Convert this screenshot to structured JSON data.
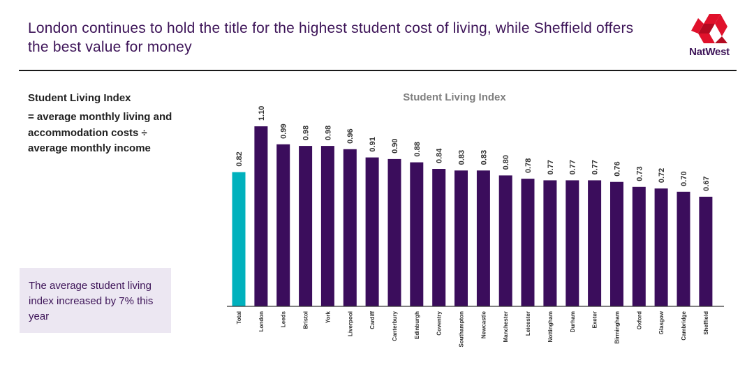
{
  "header": {
    "headline": "London continues to hold the title for the highest student cost of living, while Sheffield offers the best value for money",
    "logo_text": "NatWest",
    "logo_icon": "natwest-cubes-icon"
  },
  "definition": {
    "title": "Student Living Index",
    "text": "= average monthly living and accommodation costs ÷ average monthly income"
  },
  "callout": {
    "text": "The average student living index increased by 7% this year"
  },
  "colors": {
    "headline": "#3d1458",
    "bar": "#3b0d5c",
    "highlight": "#00b1bd",
    "logo": "#e0112b"
  },
  "chart_data": {
    "type": "bar",
    "title": "Student Living Index",
    "categories": [
      "Total",
      "London",
      "Leeds",
      "Bristol",
      "York",
      "Liverpool",
      "Cardiff",
      "Canterbury",
      "Edinburgh",
      "Coventry",
      "Southampton",
      "Newcastle",
      "Manchester",
      "Leicester",
      "Nottingham",
      "Durham",
      "Exeter",
      "Birmingham",
      "Oxford",
      "Glasgow",
      "Cambridge",
      "Sheffield"
    ],
    "values": [
      0.82,
      1.1,
      0.99,
      0.98,
      0.98,
      0.96,
      0.91,
      0.9,
      0.88,
      0.84,
      0.83,
      0.83,
      0.8,
      0.78,
      0.77,
      0.77,
      0.77,
      0.76,
      0.73,
      0.72,
      0.7,
      0.67
    ],
    "value_labels": [
      "0.82",
      "1.10",
      "0.99",
      "0.98",
      "0.98",
      "0.96",
      "0.91",
      "0.90",
      "0.88",
      "0.84",
      "0.83",
      "0.83",
      "0.80",
      "0.78",
      "0.77",
      "0.77",
      "0.77",
      "0.76",
      "0.73",
      "0.72",
      "0.70",
      "0.67"
    ],
    "highlight_index": 0,
    "ylim": [
      0,
      1.1
    ],
    "grid": false,
    "legend": "none"
  }
}
